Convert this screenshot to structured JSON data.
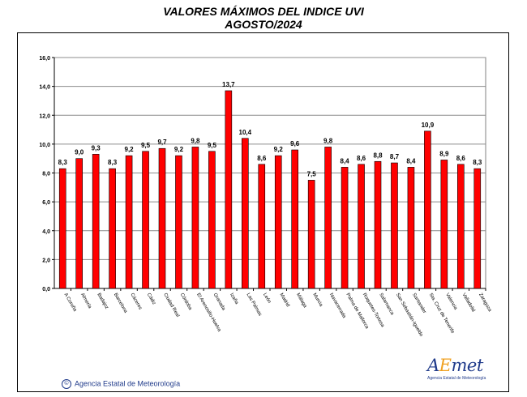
{
  "title_line1": "VALORES MÁXIMOS DEL INDICE UVI",
  "title_line2": "AGOSTO/2024",
  "credit": "Agencia Estatal de Meteorología",
  "logo": {
    "letters": [
      "A",
      "E",
      "met"
    ],
    "subtitle": "Agencia Estatal de Meteorología"
  },
  "colors": {
    "bar": "#ff0000",
    "bar_edge": "#000000",
    "grid": "#8c8c8c",
    "credit": "#1f3a8a",
    "logo_accent": "#f0a020"
  },
  "chart_data": {
    "type": "bar",
    "title": "VALORES MÁXIMOS DEL INDICE UVI",
    "subtitle": "AGOSTO/2024",
    "xlabel": "",
    "ylabel": "",
    "ylim": [
      0,
      16
    ],
    "yticks": [
      "0,0",
      "2,0",
      "4,0",
      "6,0",
      "8,0",
      "10,0",
      "12,0",
      "14,0",
      "16,0"
    ],
    "grid": true,
    "legend": "none",
    "categories": [
      "A Coruña",
      "Almería",
      "Badajoz",
      "Barcelona",
      "Cáceres",
      "Cádiz",
      "Ciudad Real",
      "Córdoba",
      "El Arenosillo-Huelva",
      "Granada",
      "Izaña",
      "Las Palmas",
      "León",
      "Madrid",
      "Málaga",
      "Murcia",
      "Navacerrada",
      "Palma de Mallorca",
      "Roquetes-Tortosa",
      "Salamanca",
      "San Sebastián-Igueldo",
      "Santander",
      "Sta. Cruz de Tenerife",
      "Valencia",
      "Valladolid",
      "Zaragoza"
    ],
    "values": [
      8.3,
      9.0,
      9.3,
      8.3,
      9.2,
      9.5,
      9.7,
      9.2,
      9.8,
      9.5,
      13.7,
      10.4,
      8.6,
      9.2,
      9.6,
      7.5,
      9.8,
      8.4,
      8.6,
      8.8,
      8.7,
      8.4,
      10.9,
      8.9,
      8.6,
      8.3
    ],
    "labels": [
      "8,3",
      "9,0",
      "9,3",
      "8,3",
      "9,2",
      "9,5",
      "9,7",
      "9,2",
      "9,8",
      "9,5",
      "13,7",
      "10,4",
      "8,6",
      "9,2",
      "9,6",
      "7,5",
      "9,8",
      "8,4",
      "8,6",
      "8,8",
      "8,7",
      "8,4",
      "10,9",
      "8,9",
      "8,6",
      "8,3"
    ]
  }
}
